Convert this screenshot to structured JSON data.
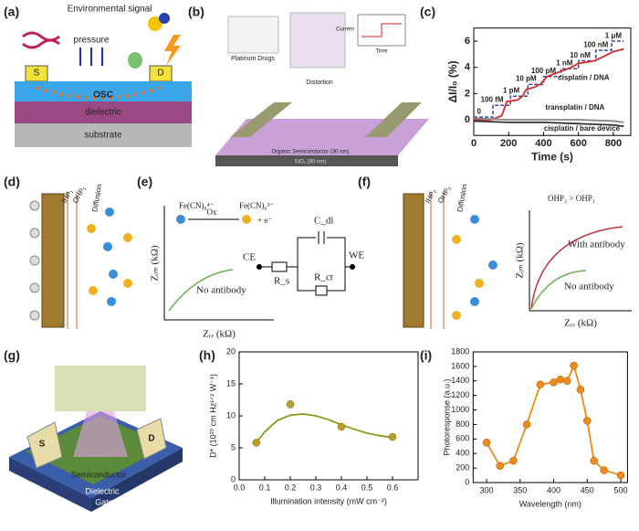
{
  "panel_labels": [
    "(a)",
    "(b)",
    "(c)",
    "(d)",
    "(e)",
    "(f)",
    "(g)",
    "(h)",
    "(i)"
  ],
  "panel_a": {
    "title": "Environmental signal",
    "pressure": "pressure",
    "source": "S",
    "drain": "D",
    "layers": [
      "OSC",
      "dielectric",
      "substrate"
    ]
  },
  "panel_b": {
    "drugs": "Platinum Drugs",
    "current": "Current",
    "time": "Time",
    "distortion": "Distortion",
    "osc": "Organic Semiconductor (30 nm)",
    "oxide": "SiO₂ (90 nm)"
  },
  "panel_d": {
    "ihp": "IHP₁",
    "ohp": "OHP₁",
    "diffusion": "Diffusion"
  },
  "panel_e": {
    "ox_left": "Fe(CN)₆⁴⁻",
    "ox": "Ox",
    "ox_right": "Fe(CN)₆³⁻",
    "electron": "+ e⁻",
    "y_label": "Zᵢₘ (kΩ)",
    "x_label": "Zᵣₑ (kΩ)",
    "curve": "No antibody",
    "ce": "CE",
    "we": "WE",
    "cdl": "C_dl",
    "rs": "R_s",
    "rct": "R_ct"
  },
  "panel_f": {
    "ihp": "IHP₂",
    "ohp": "OHP₂",
    "diffusion": "Diffusion",
    "condition": "OHP₂ > OHP₁",
    "y_label": "Zᵢₘ (kΩ)",
    "x_label": "Zᵣₑ (kΩ)",
    "with": "With antibody",
    "without": "No antibody"
  },
  "panel_g": {
    "source": "S",
    "drain": "D",
    "layers": [
      "Semiconductor",
      "Dielectric",
      "Gate"
    ]
  },
  "chart_data": [
    {
      "type": "line",
      "x_label": "Time (s)",
      "y_label": "ΔI/I₀ (%)",
      "xlim": [
        0,
        900
      ],
      "ylim": [
        -1.2,
        7
      ],
      "xticks": [
        0,
        200,
        400,
        600,
        800
      ],
      "yticks": [
        0,
        2,
        4,
        6
      ],
      "annotations": [
        "0",
        "100 fM",
        "1 pM",
        "10 pM",
        "100 pM",
        "1 nM",
        "10 nM",
        "100 nM",
        "1 μM",
        "cisplatin / DNA",
        "transplatin / DNA",
        "cisplatin / bare device"
      ],
      "series": [
        {
          "color": "#3a4a9a",
          "style": "dashed",
          "x": [
            0,
            110,
            110,
            210,
            210,
            310,
            310,
            400,
            400,
            500,
            500,
            600,
            600,
            700,
            700,
            790,
            790,
            860
          ],
          "values": [
            0.2,
            0.2,
            1.1,
            1.1,
            1.8,
            1.8,
            2.7,
            2.7,
            3.3,
            3.3,
            3.9,
            3.9,
            4.5,
            4.5,
            5.3,
            5.3,
            6.0,
            6.0
          ]
        },
        {
          "color": "#d62a2a",
          "style": "line",
          "x": [
            0,
            100,
            120,
            160,
            190,
            250,
            280,
            300,
            350,
            380,
            420,
            460,
            500,
            560,
            600,
            650,
            690,
            740,
            800,
            860
          ],
          "values": [
            0,
            0,
            0.1,
            0.3,
            1.4,
            1.5,
            1.8,
            2.3,
            2.5,
            2.7,
            3.3,
            3.5,
            3.7,
            4.0,
            4.3,
            4.4,
            4.5,
            4.8,
            5.2,
            5.4
          ]
        },
        {
          "color": "#888888",
          "style": "line",
          "x": [
            0,
            200,
            400,
            600,
            800,
            860
          ],
          "values": [
            0.1,
            0,
            0,
            0,
            -0.1,
            -0.2
          ]
        },
        {
          "color": "#333333",
          "style": "line",
          "x": [
            0,
            200,
            400,
            600,
            800,
            860
          ],
          "values": [
            -0.1,
            -0.2,
            -0.2,
            -0.3,
            -0.4,
            -0.5
          ]
        }
      ]
    },
    {
      "type": "line",
      "x_label": "Illumination intensity (mW cm⁻²)",
      "y_label": "D* (10¹⁰ cm Hz¹ᐟ² W⁻¹)",
      "xlim": [
        0,
        0.7
      ],
      "ylim": [
        0,
        20
      ],
      "xticks": [
        {
          "value": 0,
          "label": "0.0"
        },
        0.1,
        0.2,
        0.3,
        0.4,
        0.5,
        0.6
      ],
      "yticks": [
        0,
        5,
        10,
        15,
        20
      ],
      "series": [
        {
          "color": "#8a9a1a",
          "style": "line",
          "x": [
            0.067,
            0.1,
            0.15,
            0.2,
            0.25,
            0.3,
            0.35,
            0.4,
            0.45,
            0.5,
            0.55,
            0.6
          ],
          "values": [
            5.8,
            7.5,
            9.3,
            10.1,
            10.3,
            10.0,
            9.4,
            8.6,
            7.9,
            7.3,
            6.9,
            6.6
          ]
        },
        {
          "color": "#b5a02a",
          "style": "markers",
          "x": [
            0.067,
            0.2,
            0.4,
            0.6
          ],
          "values": [
            5.8,
            11.8,
            8.3,
            6.7
          ]
        }
      ]
    },
    {
      "type": "line",
      "x_label": "Wavelength (nm)",
      "y_label": "Photoresponse (a.u.)",
      "xlim": [
        280,
        510
      ],
      "ylim": [
        0,
        1800
      ],
      "xticks": [
        300,
        350,
        400,
        450,
        500
      ],
      "yticks": [
        0,
        200,
        400,
        600,
        800,
        1000,
        1200,
        1400,
        1600,
        1800
      ],
      "series": [
        {
          "color": "#f08a1a",
          "style": "line+markers",
          "x": [
            300,
            320,
            340,
            360,
            380,
            400,
            410,
            420,
            430,
            440,
            450,
            460,
            475,
            500
          ],
          "values": [
            550,
            230,
            300,
            800,
            1350,
            1380,
            1420,
            1400,
            1610,
            1280,
            850,
            300,
            170,
            100
          ]
        }
      ]
    }
  ]
}
